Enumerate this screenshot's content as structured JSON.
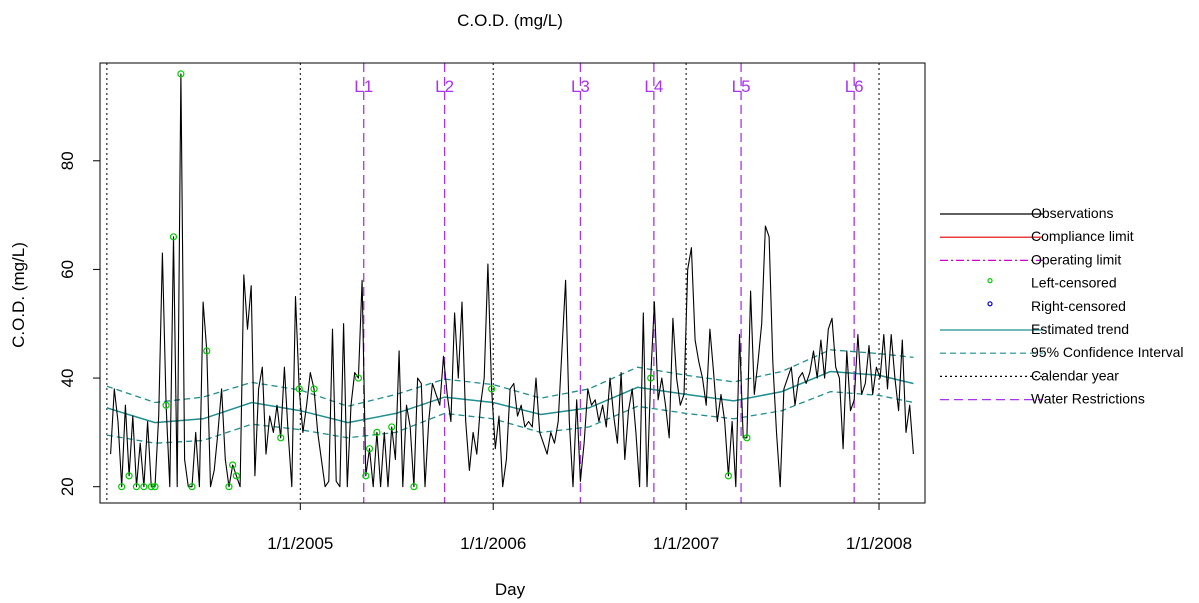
{
  "chart_data": {
    "type": "line",
    "title": "C.O.D. (mg/L)",
    "xlabel": "Day",
    "ylabel": "C.O.D. (mg/L)",
    "xlim": [
      "2003-12-19",
      "2008-03-28"
    ],
    "ylim": [
      17,
      98
    ],
    "x_ticks": [
      {
        "date": "2005-01-01",
        "label": "1/1/2005"
      },
      {
        "date": "2006-01-01",
        "label": "1/1/2006"
      },
      {
        "date": "2007-01-01",
        "label": "1/1/2007"
      },
      {
        "date": "2008-01-01",
        "label": "1/1/2008"
      }
    ],
    "y_ticks": [
      20,
      40,
      60,
      80
    ],
    "grid": false,
    "legend_position": "right",
    "calendar_year_lines": [
      "2004-01-01",
      "2005-01-01",
      "2006-01-01",
      "2007-01-01",
      "2008-01-01"
    ],
    "water_restrictions": [
      {
        "label": "L1",
        "date": "2005-05-01"
      },
      {
        "label": "L2",
        "date": "2005-10-01"
      },
      {
        "label": "L3",
        "date": "2006-06-15"
      },
      {
        "label": "L4",
        "date": "2006-11-01"
      },
      {
        "label": "L5",
        "date": "2007-04-15"
      },
      {
        "label": "L6",
        "date": "2007-11-15"
      }
    ],
    "series": [
      {
        "name": "Observations",
        "color": "#000000",
        "style": "solid",
        "x": [
          "2004-01-08",
          "2004-01-15",
          "2004-01-22",
          "2004-01-29",
          "2004-02-05",
          "2004-02-12",
          "2004-02-19",
          "2004-02-26",
          "2004-03-04",
          "2004-03-11",
          "2004-03-18",
          "2004-03-25",
          "2004-04-01",
          "2004-04-08",
          "2004-04-15",
          "2004-04-22",
          "2004-04-29",
          "2004-05-06",
          "2004-05-13",
          "2004-05-20",
          "2004-05-27",
          "2004-06-03",
          "2004-06-10",
          "2004-06-17",
          "2004-06-24",
          "2004-07-01",
          "2004-07-08",
          "2004-07-15",
          "2004-07-22",
          "2004-07-29",
          "2004-08-05",
          "2004-08-12",
          "2004-08-19",
          "2004-08-26",
          "2004-09-02",
          "2004-09-09",
          "2004-09-16",
          "2004-09-23",
          "2004-09-30",
          "2004-10-07",
          "2004-10-14",
          "2004-10-21",
          "2004-10-28",
          "2004-11-04",
          "2004-11-11",
          "2004-11-18",
          "2004-11-25",
          "2004-12-02",
          "2004-12-09",
          "2004-12-16",
          "2004-12-23",
          "2004-12-30",
          "2005-01-06",
          "2005-01-13",
          "2005-01-20",
          "2005-01-27",
          "2005-02-03",
          "2005-02-10",
          "2005-02-17",
          "2005-02-24",
          "2005-03-03",
          "2005-03-10",
          "2005-03-17",
          "2005-03-24",
          "2005-03-31",
          "2005-04-07",
          "2005-04-14",
          "2005-04-21",
          "2005-04-28",
          "2005-05-05",
          "2005-05-12",
          "2005-05-19",
          "2005-05-26",
          "2005-06-02",
          "2005-06-09",
          "2005-06-16",
          "2005-06-23",
          "2005-06-30",
          "2005-07-07",
          "2005-07-14",
          "2005-07-21",
          "2005-07-28",
          "2005-08-04",
          "2005-08-11",
          "2005-08-18",
          "2005-08-25",
          "2005-09-01",
          "2005-09-08",
          "2005-09-15",
          "2005-09-22",
          "2005-09-29",
          "2005-10-06",
          "2005-10-13",
          "2005-10-20",
          "2005-10-27",
          "2005-11-03",
          "2005-11-10",
          "2005-11-17",
          "2005-11-24",
          "2005-12-01",
          "2005-12-08",
          "2005-12-15",
          "2005-12-22",
          "2005-12-29",
          "2006-01-05",
          "2006-01-12",
          "2006-01-19",
          "2006-01-26",
          "2006-02-02",
          "2006-02-09",
          "2006-02-16",
          "2006-02-23",
          "2006-03-02",
          "2006-03-09",
          "2006-03-16",
          "2006-03-23",
          "2006-03-30",
          "2006-04-06",
          "2006-04-13",
          "2006-04-20",
          "2006-04-27",
          "2006-05-04",
          "2006-05-11",
          "2006-05-18",
          "2006-05-25",
          "2006-06-01",
          "2006-06-08",
          "2006-06-15",
          "2006-06-22",
          "2006-06-29",
          "2006-07-06",
          "2006-07-13",
          "2006-07-20",
          "2006-07-27",
          "2006-08-03",
          "2006-08-10",
          "2006-08-17",
          "2006-08-24",
          "2006-08-31",
          "2006-09-07",
          "2006-09-14",
          "2006-09-21",
          "2006-09-28",
          "2006-10-05",
          "2006-10-12",
          "2006-10-19",
          "2006-10-26",
          "2006-11-02",
          "2006-11-09",
          "2006-11-16",
          "2006-11-23",
          "2006-11-30",
          "2006-12-07",
          "2006-12-14",
          "2006-12-21",
          "2006-12-28",
          "2007-01-04",
          "2007-01-11",
          "2007-01-18",
          "2007-01-25",
          "2007-02-01",
          "2007-02-08",
          "2007-02-15",
          "2007-02-22",
          "2007-03-01",
          "2007-03-08",
          "2007-03-15",
          "2007-03-22",
          "2007-03-29",
          "2007-04-05",
          "2007-04-12",
          "2007-04-19",
          "2007-04-26",
          "2007-05-03",
          "2007-05-10",
          "2007-05-17",
          "2007-05-24",
          "2007-05-31",
          "2007-06-07",
          "2007-06-14",
          "2007-06-21",
          "2007-06-28",
          "2007-07-05",
          "2007-07-12",
          "2007-07-19",
          "2007-07-26",
          "2007-08-02",
          "2007-08-09",
          "2007-08-16",
          "2007-08-23",
          "2007-08-30",
          "2007-09-06",
          "2007-09-13",
          "2007-09-20",
          "2007-09-27",
          "2007-10-04",
          "2007-10-11",
          "2007-10-18",
          "2007-10-25",
          "2007-11-01",
          "2007-11-08",
          "2007-11-15",
          "2007-11-22",
          "2007-11-29",
          "2007-12-06",
          "2007-12-13",
          "2007-12-20",
          "2007-12-27",
          "2008-01-03",
          "2008-01-10",
          "2008-01-17",
          "2008-01-24",
          "2008-01-31",
          "2008-02-07",
          "2008-02-14",
          "2008-02-21",
          "2008-02-28",
          "2008-03-06"
        ],
        "y": [
          26,
          38,
          32,
          20,
          35,
          22,
          33,
          20,
          28,
          20,
          32,
          20,
          20,
          33,
          63,
          35,
          20,
          66,
          20,
          96,
          25,
          20,
          20,
          30,
          20,
          54,
          45,
          20,
          23,
          30,
          38,
          25,
          20,
          24,
          22,
          20,
          59,
          49,
          57,
          22,
          38,
          42,
          26,
          33,
          30,
          35,
          29,
          42,
          30,
          20,
          55,
          38,
          30,
          35,
          41,
          38,
          30,
          25,
          20,
          21,
          49,
          21,
          20,
          50,
          20,
          35,
          41,
          40,
          58,
          22,
          27,
          20,
          30,
          20,
          30,
          20,
          31,
          25,
          45,
          20,
          35,
          31,
          20,
          40,
          39,
          20,
          32,
          39,
          37,
          35,
          44,
          37,
          32,
          52,
          40,
          54,
          32,
          23,
          30,
          26,
          35,
          40,
          61,
          38,
          27,
          33,
          20,
          25,
          38,
          39,
          33,
          35,
          31,
          32,
          31,
          40,
          30,
          28,
          26,
          30,
          28,
          32,
          45,
          58,
          32,
          20,
          36,
          21,
          28,
          38,
          35,
          36,
          32,
          35,
          31,
          40,
          33,
          28,
          41,
          25,
          34,
          38,
          30,
          20,
          52,
          20,
          40,
          54,
          36,
          40,
          35,
          29,
          51,
          40,
          35,
          37,
          60,
          64,
          47,
          43,
          40,
          35,
          49,
          41,
          32,
          37,
          32,
          22,
          32,
          20,
          48,
          29,
          29,
          56,
          37,
          43,
          50,
          68,
          66,
          43,
          30,
          20,
          38,
          40,
          42,
          35,
          40,
          41,
          39,
          41,
          45,
          40,
          47,
          40,
          49,
          51,
          42,
          40,
          27,
          45,
          34,
          36,
          48,
          37,
          39,
          46,
          37,
          42,
          40,
          48,
          38,
          48,
          40,
          34,
          47,
          30,
          35,
          26
        ],
        "censored_left": [
          "2004-01-29",
          "2004-02-12",
          "2004-02-26",
          "2004-03-11",
          "2004-03-25",
          "2004-04-01",
          "2004-04-22",
          "2004-05-06",
          "2004-05-20",
          "2004-06-10",
          "2004-07-08",
          "2004-08-19",
          "2004-08-26",
          "2004-09-02",
          "2004-11-25",
          "2004-12-30",
          "2005-01-27",
          "2005-04-21",
          "2005-05-05",
          "2005-05-12",
          "2005-05-26",
          "2005-06-23",
          "2005-08-04",
          "2005-12-29",
          "2006-10-26",
          "2007-03-22",
          "2007-04-26"
        ]
      },
      {
        "name": "Estimated trend",
        "color": "#1f8f8f",
        "style": "solid",
        "x": [
          "2004-01-01",
          "2004-04-01",
          "2004-07-01",
          "2004-10-01",
          "2005-01-01",
          "2005-04-01",
          "2005-07-01",
          "2005-10-01",
          "2006-01-01",
          "2006-04-01",
          "2006-07-01",
          "2006-10-01",
          "2007-01-01",
          "2007-04-01",
          "2007-07-01",
          "2007-10-01",
          "2008-01-01",
          "2008-03-06"
        ],
        "y": [
          34.5,
          31.8,
          32.5,
          35.5,
          34.0,
          31.8,
          33.5,
          36.5,
          35.5,
          33.3,
          34.5,
          38.3,
          37.0,
          35.8,
          37.5,
          41.2,
          40.5,
          39.0
        ]
      },
      {
        "name": "95% Confidence Interval",
        "color": "#1f8f8f",
        "style": "dashed",
        "x": [
          "2004-01-01",
          "2004-04-01",
          "2004-07-01",
          "2004-10-01",
          "2005-01-01",
          "2005-04-01",
          "2005-07-01",
          "2005-10-01",
          "2006-01-01",
          "2006-04-01",
          "2006-07-01",
          "2006-10-01",
          "2007-01-01",
          "2007-04-01",
          "2007-07-01",
          "2007-10-01",
          "2008-01-01",
          "2008-03-06"
        ],
        "upper": [
          38.5,
          35.5,
          36.5,
          39.2,
          37.8,
          34.8,
          37.0,
          39.8,
          38.8,
          36.3,
          38.0,
          42.0,
          40.5,
          39.3,
          41.2,
          45.2,
          44.5,
          43.8
        ],
        "lower": [
          29.5,
          28.0,
          28.5,
          31.5,
          30.5,
          29.0,
          30.0,
          33.5,
          32.5,
          30.0,
          31.0,
          34.8,
          33.5,
          32.5,
          34.0,
          37.5,
          36.8,
          35.5
        ]
      }
    ],
    "legend": [
      {
        "label": "Observations",
        "kind": "line",
        "color": "#000000",
        "dash": "solid"
      },
      {
        "label": "Compliance limit",
        "kind": "line",
        "color": "#e00000",
        "dash": "solid"
      },
      {
        "label": "Operating limit",
        "kind": "line",
        "color": "#cc00cc",
        "dash": "dashdot"
      },
      {
        "label": "Left-censored",
        "kind": "point",
        "color": "#00cc00"
      },
      {
        "label": "Right-censored",
        "kind": "point",
        "color": "#0000cc"
      },
      {
        "label": "Estimated trend",
        "kind": "line",
        "color": "#1f8f8f",
        "dash": "solid"
      },
      {
        "label": "95% Confidence Interval",
        "kind": "line",
        "color": "#1f8f8f",
        "dash": "dashed"
      },
      {
        "label": "Calendar year",
        "kind": "line",
        "color": "#000000",
        "dash": "dotted"
      },
      {
        "label": "Water Restrictions",
        "kind": "line",
        "color": "#aa33ee",
        "dash": "longdash"
      }
    ],
    "colors": {
      "restriction": "#aa33ee",
      "censored_left": "#00cc00",
      "trend": "#1f8f8f"
    }
  }
}
